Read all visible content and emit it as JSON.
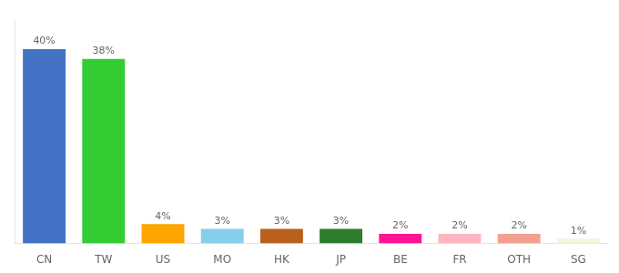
{
  "chart_data": {
    "type": "bar",
    "categories": [
      "CN",
      "TW",
      "US",
      "MO",
      "HK",
      "JP",
      "BE",
      "FR",
      "OTH",
      "SG"
    ],
    "values": [
      40,
      38,
      4,
      3,
      3,
      3,
      2,
      2,
      2,
      1
    ],
    "value_labels": [
      "40%",
      "38%",
      "4%",
      "3%",
      "3%",
      "3%",
      "2%",
      "2%",
      "2%",
      "1%"
    ],
    "colors": [
      "#4472C4",
      "#33CC33",
      "#FFA500",
      "#87CEEB",
      "#B8601C",
      "#2E7D2E",
      "#FF1493",
      "#FFB6C1",
      "#F4A090",
      "#F5F5DC"
    ],
    "ylim": [
      0,
      46
    ],
    "grid": false,
    "data_labels": true,
    "tick_labels": "x"
  }
}
